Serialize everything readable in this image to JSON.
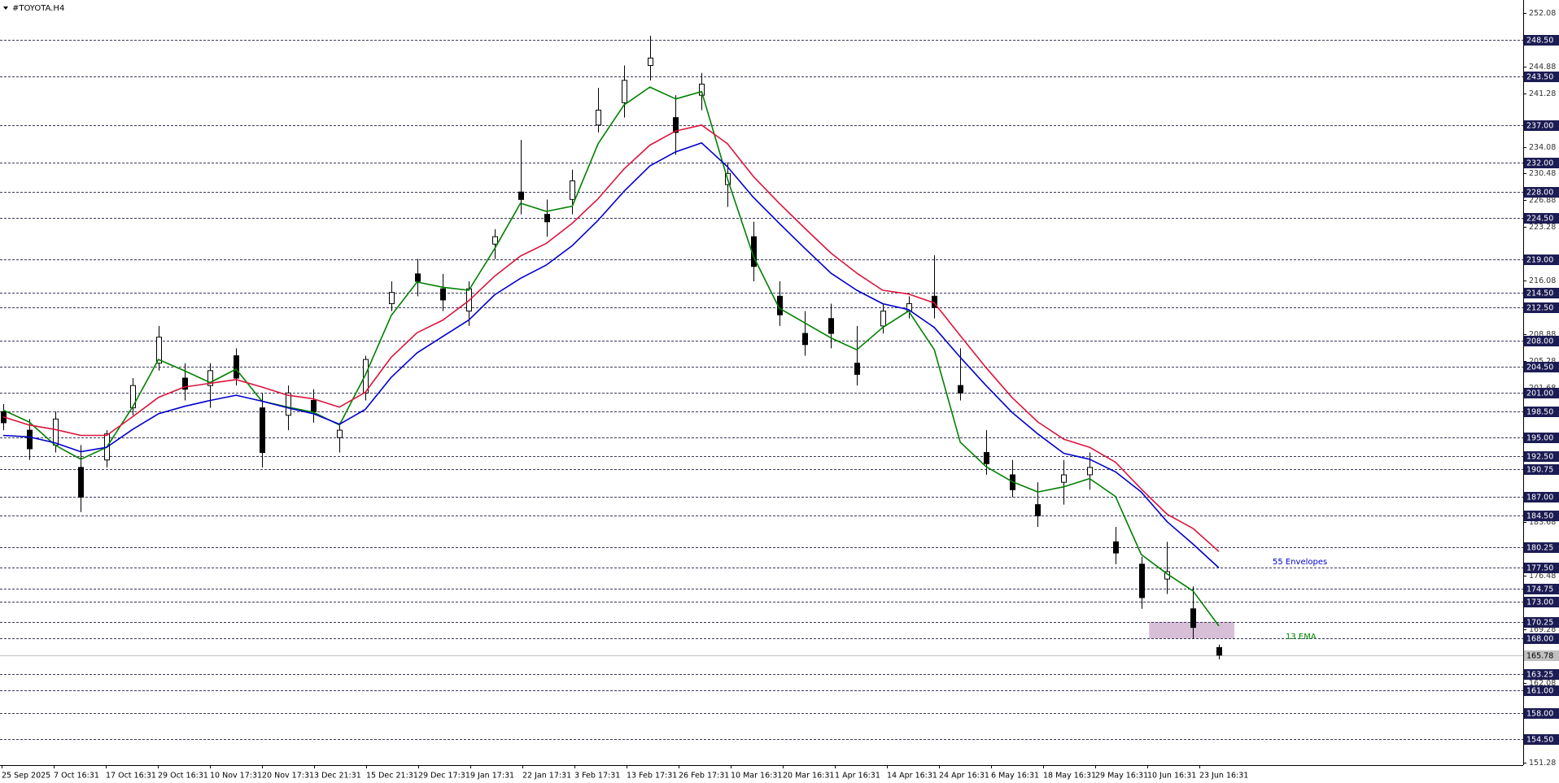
{
  "chart_data": {
    "type": "candlestick",
    "title": "#TOYOTA.H4",
    "x_labels": [
      "25 Sep 2025",
      "7 Oct 16:31",
      "17 Oct 16:31",
      "29 Oct 16:31",
      "10 Nov 17:31",
      "20 Nov 17:31",
      "3 Dec 21:31",
      "15 Dec 21:31",
      "29 Dec 17:31",
      "9 Jan 17:31",
      "22 Jan 17:31",
      "3 Feb 17:31",
      "13 Feb 17:31",
      "26 Feb 17:31",
      "10 Mar 16:31",
      "20 Mar 16:31",
      "1 Apr 16:31",
      "14 Apr 16:31",
      "24 Apr 16:31",
      "6 May 16:31",
      "18 May 16:31",
      "29 May 16:31",
      "10 Jun 16:31",
      "23 Jun 16:31"
    ],
    "ylim": [
      151.0,
      253.8
    ],
    "yticks": [
      252.08,
      244.88,
      241.28,
      234.08,
      230.48,
      226.88,
      223.28,
      216.08,
      208.88,
      205.28,
      201.68,
      198.08,
      183.68,
      176.48,
      169.28,
      162.08,
      151.28
    ],
    "levels": [
      {
        "value": 248.5,
        "label": "248.50"
      },
      {
        "value": 243.5,
        "label": "243.50"
      },
      {
        "value": 237,
        "label": "237.00"
      },
      {
        "value": 232,
        "label": "232.00"
      },
      {
        "value": 228,
        "label": "228.00"
      },
      {
        "value": 224.5,
        "label": "224.50"
      },
      {
        "value": 219,
        "label": "219.00"
      },
      {
        "value": 214.5,
        "label": "214.50"
      },
      {
        "value": 212.5,
        "label": "212.50"
      },
      {
        "value": 208,
        "label": "208.00"
      },
      {
        "value": 204.5,
        "label": "204.50"
      },
      {
        "value": 201,
        "label": "201.00"
      },
      {
        "value": 198.5,
        "label": "198.50"
      },
      {
        "value": 195,
        "label": "195.00"
      },
      {
        "value": 192.5,
        "label": "192.50"
      },
      {
        "value": 190.75,
        "label": "190.75"
      },
      {
        "value": 187,
        "label": "187.00"
      },
      {
        "value": 184.5,
        "label": "184.50"
      },
      {
        "value": 180.25,
        "label": "180.25"
      },
      {
        "value": 177.5,
        "label": "177.50"
      },
      {
        "value": 174.75,
        "label": "174.75"
      },
      {
        "value": 173,
        "label": "173.00"
      },
      {
        "value": 170.25,
        "label": "170.25"
      },
      {
        "value": 168,
        "label": "168.00"
      },
      {
        "value": 163.25,
        "label": "163.25"
      },
      {
        "value": 161,
        "label": "161.00"
      },
      {
        "value": 158,
        "label": "158.00"
      },
      {
        "value": 154.5,
        "label": "154.50"
      }
    ],
    "current_price": 165.78,
    "zone": [
      168,
      170.25
    ],
    "zone_color": "#d8bfd8",
    "candles": {
      "open": [
        198.5,
        196,
        194,
        191,
        192,
        199,
        205,
        203,
        202,
        206,
        199,
        198,
        200,
        195,
        201,
        213,
        217,
        215,
        212,
        221,
        228,
        225,
        227,
        237,
        240,
        245,
        238,
        241,
        229,
        222,
        214,
        209,
        211,
        205,
        210,
        212,
        214,
        202,
        193,
        190,
        186,
        189,
        190,
        181,
        178,
        176,
        172,
        166.8
      ],
      "high": [
        199.5,
        197.5,
        198.5,
        194,
        196,
        203,
        210,
        205,
        205,
        207,
        201,
        202,
        201.5,
        197,
        206,
        216,
        219,
        217,
        216,
        223,
        235,
        227,
        231,
        242,
        245,
        249,
        241,
        244,
        232,
        224,
        216,
        212,
        213,
        210,
        213,
        214,
        219.5,
        207,
        196,
        192,
        189,
        192,
        193,
        183,
        179,
        181,
        175,
        167.2
      ],
      "low": [
        196,
        192,
        193,
        185,
        191,
        198,
        204,
        200,
        199,
        202,
        191,
        196,
        197,
        193,
        200,
        212,
        214,
        212,
        210,
        219,
        225,
        222,
        225,
        236,
        238,
        243,
        233,
        239,
        226,
        216,
        210,
        206,
        207,
        202,
        209,
        211,
        211,
        200,
        190,
        187,
        183,
        186,
        188,
        178,
        172,
        174,
        168,
        165.2
      ],
      "close": [
        197,
        193.5,
        197.5,
        187,
        195.5,
        202,
        208.5,
        201.5,
        204,
        203,
        193,
        201,
        198.5,
        196,
        205.5,
        214.5,
        216,
        213.5,
        215,
        222,
        227,
        224,
        229.5,
        239,
        243,
        246,
        236,
        242.5,
        230.5,
        218,
        211.5,
        207.5,
        209,
        203.5,
        212,
        213,
        212.5,
        201,
        191.5,
        188,
        184.5,
        190,
        191,
        179.5,
        173.5,
        177,
        169.5,
        165.78
      ]
    },
    "series": [
      {
        "name": "13 EMA",
        "color": "#008000",
        "values": [
          198.7,
          197.1,
          194.0,
          192.1,
          193.7,
          199.1,
          205.5,
          204.0,
          202.4,
          204.2,
          199.9,
          199.1,
          198.4,
          196.7,
          203.4,
          211.4,
          215.9,
          215.2,
          214.8,
          220.4,
          226.5,
          225.4,
          226.1,
          234.5,
          239.7,
          242.1,
          240.5,
          241.5,
          229.8,
          219.4,
          212.4,
          210.4,
          208.4,
          206.8,
          209.8,
          212.0,
          206.8,
          194.4,
          191.1,
          189.1,
          187.7,
          188.4,
          189.5,
          187.1,
          179.3,
          176.7,
          174.4,
          169.7
        ]
      },
      {
        "name": "55 Envelopes",
        "color": "#0000cd",
        "values": [
          195.3,
          195.1,
          194.3,
          193.1,
          193.7,
          196.1,
          198.2,
          199.2,
          200.0,
          200.7,
          199.9,
          199.0,
          198.2,
          196.8,
          198.8,
          203.1,
          206.4,
          208.6,
          210.8,
          214.2,
          216.4,
          218.2,
          220.8,
          224.2,
          228.1,
          231.5,
          233.4,
          234.6,
          231.4,
          227.3,
          223.8,
          220.4,
          217.1,
          214.8,
          213.0,
          212.2,
          209.8,
          205.8,
          202.0,
          198.4,
          195.5,
          192.9,
          192.1,
          190.4,
          187.7,
          183.7,
          180.7,
          177.5
        ]
      },
      {
        "color": "#dc143c",
        "values": [
          197.8,
          196.7,
          196.1,
          195.3,
          195.3,
          197.8,
          200.4,
          201.8,
          202.3,
          202.8,
          201.8,
          200.7,
          200.2,
          199.1,
          201.1,
          205.8,
          209.1,
          210.8,
          213.4,
          216.7,
          219.4,
          221.1,
          223.8,
          227.1,
          231.1,
          234.3,
          236.2,
          237.0,
          234.5,
          230.1,
          226.5,
          223.1,
          219.8,
          217.1,
          214.8,
          214.3,
          213.1,
          208.7,
          204.4,
          200.4,
          197.1,
          194.8,
          193.7,
          191.7,
          188.1,
          184.7,
          182.8,
          179.7
        ]
      }
    ]
  }
}
